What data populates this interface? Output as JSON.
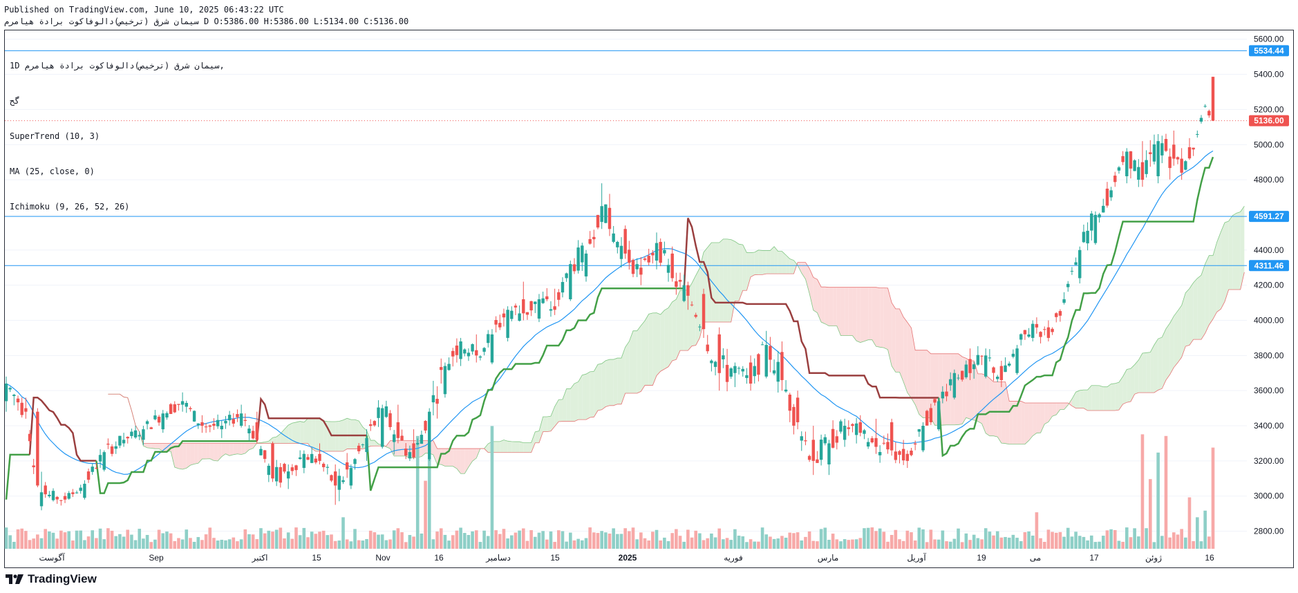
{
  "header": {
    "published": "Published on TradingView.com, June 10, 2025 06:43:22 UTC",
    "ohlc": "سيمان شرق (ترخيص)دالوفاكوت برادة هيامرم D O:5386.00 H:5386.00 L:5134.00 C:5136.00"
  },
  "legend": {
    "symbol": "1D سيمان شرق (ترخيص)دالوفاكوت برادة هيامرم,",
    "line2": "گح",
    "supertrend": "SuperTrend (10, 3)",
    "ma": "MA (25, close, 0)",
    "ichimoku": "Ichimoku (9, 26, 52, 26)"
  },
  "footer": {
    "brand": "TradingView"
  },
  "chart_data": {
    "type": "candlestick",
    "title": "",
    "ylim": [
      2700,
      5650
    ],
    "y_ticks": [
      2800,
      3000,
      3200,
      3400,
      3600,
      3800,
      4000,
      4200,
      4400,
      4600,
      4800,
      5000,
      5200,
      5400,
      5600
    ],
    "x_labels": [
      "آگوست",
      "Sep",
      "اکتبر",
      "15",
      "Nov",
      "16",
      "دسامبر",
      "15",
      "2025",
      "فوریه",
      "مارس",
      "آوریل",
      "19",
      "می",
      "17",
      "ژوئن",
      "16"
    ],
    "horizontal_levels": [
      {
        "value": 5534.44,
        "label": "5534.44",
        "color": "#2196f3"
      },
      {
        "value": 4591.27,
        "label": "4591.27",
        "color": "#2196f3"
      },
      {
        "value": 4311.46,
        "label": "4311.46",
        "color": "#2196f3"
      }
    ],
    "last_price": {
      "value": 5136.0,
      "label": "5136.00",
      "color": "#ef5350"
    },
    "colors": {
      "up": "#26a69a",
      "down": "#ef5350",
      "up_vol": "#8ecfc7",
      "down_vol": "#f7a9a8",
      "ma": "#2196f3",
      "st_up": "#43a047",
      "st_down": "#9a3f3f",
      "cloud_up": "#dff0dc",
      "cloud_down": "#fbdcdc"
    },
    "ohlc_anchors": [
      [
        0,
        3540,
        3680,
        3480,
        3640
      ],
      [
        5,
        3500,
        3560,
        3440,
        3480
      ],
      [
        8,
        3480,
        3500,
        3050,
        3060
      ],
      [
        10,
        3060,
        3080,
        2990,
        3010
      ],
      [
        15,
        3000,
        3020,
        2960,
        2980
      ],
      [
        20,
        2990,
        3090,
        2980,
        3070
      ],
      [
        25,
        3150,
        3260,
        3140,
        3250
      ],
      [
        30,
        3300,
        3360,
        3280,
        3320
      ],
      [
        35,
        3320,
        3400,
        3290,
        3380
      ],
      [
        40,
        3380,
        3490,
        3360,
        3470
      ],
      [
        45,
        3520,
        3590,
        3480,
        3540
      ],
      [
        50,
        3420,
        3460,
        3360,
        3400
      ],
      [
        55,
        3380,
        3430,
        3330,
        3400
      ],
      [
        60,
        3400,
        3520,
        3390,
        3470
      ],
      [
        64,
        3420,
        3480,
        3300,
        3320
      ],
      [
        68,
        3300,
        3310,
        3080,
        3100
      ],
      [
        72,
        3100,
        3180,
        3040,
        3140
      ],
      [
        76,
        3160,
        3260,
        3130,
        3240
      ],
      [
        80,
        3240,
        3300,
        3180,
        3200
      ],
      [
        84,
        3140,
        3180,
        2950,
        3060
      ],
      [
        88,
        3060,
        3180,
        3040,
        3160
      ],
      [
        92,
        3250,
        3380,
        3200,
        3330
      ],
      [
        96,
        3280,
        3520,
        3270,
        3500
      ],
      [
        100,
        3420,
        3520,
        3300,
        3330
      ],
      [
        104,
        3300,
        3380,
        3210,
        3220
      ],
      [
        108,
        3210,
        3500,
        3200,
        3480
      ],
      [
        112,
        3580,
        3760,
        3560,
        3740
      ],
      [
        116,
        3780,
        3900,
        3740,
        3880
      ],
      [
        120,
        3830,
        3920,
        3760,
        3800
      ],
      [
        124,
        3760,
        3950,
        3750,
        3920
      ],
      [
        128,
        3900,
        4080,
        3880,
        4060
      ],
      [
        132,
        4120,
        4220,
        4000,
        4040
      ],
      [
        136,
        4010,
        4150,
        3990,
        4120
      ],
      [
        140,
        4080,
        4180,
        4030,
        4060
      ],
      [
        144,
        4120,
        4340,
        4110,
        4320
      ],
      [
        148,
        4250,
        4400,
        4220,
        4380
      ],
      [
        152,
        4560,
        4780,
        4520,
        4650
      ],
      [
        154,
        4640,
        4720,
        4480,
        4520
      ],
      [
        158,
        4520,
        4540,
        4350,
        4380
      ],
      [
        162,
        4300,
        4360,
        4200,
        4260
      ],
      [
        166,
        4340,
        4500,
        4290,
        4440
      ],
      [
        170,
        4380,
        4420,
        4220,
        4240
      ],
      [
        174,
        4200,
        4220,
        4060,
        4140
      ],
      [
        178,
        4150,
        4180,
        3900,
        3950
      ],
      [
        182,
        3920,
        3960,
        3600,
        3700
      ],
      [
        186,
        3700,
        3760,
        3620,
        3740
      ],
      [
        190,
        3760,
        3800,
        3600,
        3640
      ],
      [
        194,
        3680,
        3940,
        3670,
        3860
      ],
      [
        198,
        3820,
        3880,
        3600,
        3660
      ],
      [
        202,
        3560,
        3600,
        3380,
        3420
      ],
      [
        206,
        3320,
        3400,
        3120,
        3200
      ],
      [
        210,
        3180,
        3320,
        3120,
        3300
      ],
      [
        214,
        3320,
        3440,
        3280,
        3400
      ],
      [
        218,
        3420,
        3460,
        3340,
        3360
      ],
      [
        222,
        3330,
        3440,
        3240,
        3280
      ],
      [
        226,
        3420,
        3440,
        3230,
        3260
      ],
      [
        230,
        3240,
        3260,
        3160,
        3200
      ],
      [
        234,
        3260,
        3420,
        3250,
        3400
      ],
      [
        238,
        3380,
        3560,
        3370,
        3540
      ],
      [
        242,
        3560,
        3720,
        3550,
        3700
      ],
      [
        246,
        3780,
        3840,
        3660,
        3700
      ],
      [
        250,
        3680,
        3840,
        3670,
        3800
      ],
      [
        254,
        3740,
        3770,
        3620,
        3660
      ],
      [
        258,
        3700,
        3860,
        3690,
        3840
      ],
      [
        262,
        3900,
        4000,
        3880,
        3980
      ],
      [
        266,
        3960,
        4000,
        3880,
        3900
      ],
      [
        270,
        4100,
        4160,
        4090,
        4120
      ],
      [
        274,
        4240,
        4420,
        4210,
        4400
      ],
      [
        278,
        4440,
        4620,
        4430,
        4600
      ],
      [
        282,
        4700,
        4760,
        4680,
        4740
      ],
      [
        286,
        4820,
        4980,
        4780,
        4960
      ],
      [
        290,
        4900,
        5020,
        4760,
        4800
      ],
      [
        294,
        4820,
        5060,
        4780,
        5020
      ],
      [
        298,
        5000,
        5080,
        4880,
        4920
      ],
      [
        300,
        4920,
        4980,
        4800,
        4840
      ],
      [
        304,
        5060,
        5080,
        5040,
        5060
      ],
      [
        306,
        5220,
        5230,
        5210,
        5220
      ],
      [
        308,
        5386,
        5386,
        5134,
        5136
      ]
    ],
    "volume_spikes": [
      [
        86,
        1.9
      ],
      [
        105,
        6.8
      ],
      [
        107,
        4.1
      ],
      [
        108,
        5.5
      ],
      [
        124,
        7.4
      ],
      [
        263,
        2.2
      ],
      [
        290,
        6.9
      ],
      [
        292,
        4.2
      ],
      [
        294,
        5.8
      ],
      [
        296,
        6.8
      ],
      [
        302,
        3.1
      ],
      [
        304,
        1.9
      ],
      [
        306,
        2.3
      ],
      [
        308,
        6.1
      ]
    ],
    "supertrend_note": "Piecewise trend-following line",
    "ichimoku_note": "Lagged cloud span"
  }
}
